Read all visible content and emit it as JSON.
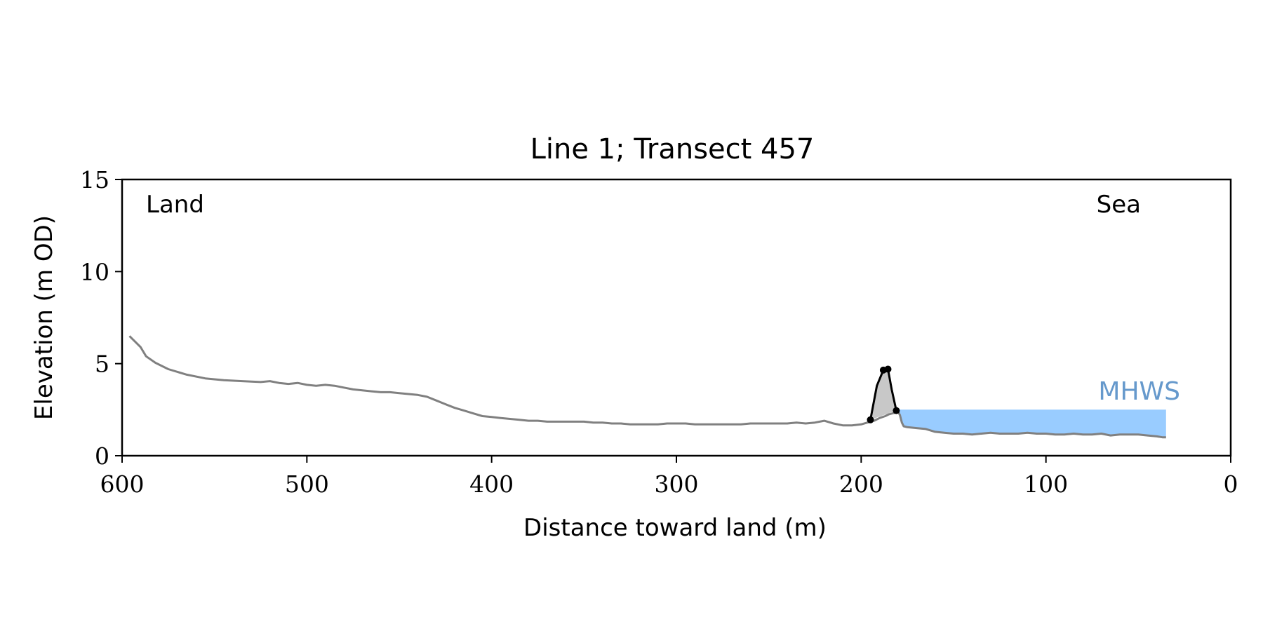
{
  "chart_data": {
    "type": "line",
    "title": "Line 1; Transect 457",
    "xlabel": "Distance toward land (m)",
    "ylabel": "Elevation (m OD)",
    "xlim": [
      600,
      0
    ],
    "ylim": [
      0,
      15
    ],
    "x_ticks": [
      600,
      500,
      400,
      300,
      200,
      100,
      0
    ],
    "y_ticks": [
      0,
      5,
      10,
      15
    ],
    "grid": false,
    "annotations": {
      "land": "Land",
      "sea": "Sea",
      "mhws": "MHWS"
    },
    "colors": {
      "profile": "#808080",
      "dune_fill": "#c8c8c8",
      "dune_line": "#000000",
      "water": "#99ccff",
      "mhws_label": "#6699cc"
    },
    "mhws": {
      "level": 2.5,
      "x_start": 180,
      "x_end": 35
    },
    "profile": {
      "x": [
        596,
        590,
        587,
        582,
        575,
        565,
        555,
        545,
        535,
        525,
        520,
        515,
        510,
        505,
        500,
        495,
        490,
        485,
        480,
        475,
        470,
        465,
        460,
        455,
        450,
        445,
        440,
        435,
        430,
        425,
        420,
        415,
        410,
        405,
        400,
        395,
        390,
        385,
        380,
        375,
        370,
        365,
        360,
        355,
        350,
        345,
        340,
        335,
        330,
        325,
        320,
        315,
        310,
        305,
        300,
        295,
        290,
        285,
        280,
        275,
        270,
        265,
        260,
        255,
        250,
        245,
        240,
        235,
        230,
        225,
        220,
        215,
        210,
        205,
        200,
        195,
        193,
        190,
        187,
        185,
        183,
        181,
        180,
        179,
        178,
        177,
        175,
        170,
        165,
        160,
        155,
        150,
        145,
        140,
        135,
        130,
        125,
        120,
        115,
        110,
        105,
        100,
        95,
        90,
        85,
        80,
        75,
        70,
        65,
        60,
        55,
        50,
        45,
        40,
        37,
        35
      ],
      "y": [
        6.5,
        5.9,
        5.4,
        5.05,
        4.7,
        4.4,
        4.2,
        4.1,
        4.05,
        4.0,
        4.05,
        3.95,
        3.9,
        3.95,
        3.85,
        3.8,
        3.85,
        3.8,
        3.7,
        3.6,
        3.55,
        3.5,
        3.45,
        3.45,
        3.4,
        3.35,
        3.3,
        3.2,
        3.0,
        2.8,
        2.6,
        2.45,
        2.3,
        2.15,
        2.1,
        2.05,
        2.0,
        1.95,
        1.9,
        1.9,
        1.85,
        1.85,
        1.85,
        1.85,
        1.85,
        1.8,
        1.8,
        1.75,
        1.75,
        1.7,
        1.7,
        1.7,
        1.7,
        1.75,
        1.75,
        1.75,
        1.7,
        1.7,
        1.7,
        1.7,
        1.7,
        1.7,
        1.75,
        1.75,
        1.75,
        1.75,
        1.75,
        1.8,
        1.75,
        1.8,
        1.9,
        1.75,
        1.65,
        1.65,
        1.7,
        1.85,
        1.9,
        2.05,
        2.15,
        2.25,
        2.3,
        2.35,
        2.4,
        2.2,
        1.8,
        1.6,
        1.55,
        1.5,
        1.45,
        1.3,
        1.25,
        1.2,
        1.2,
        1.15,
        1.2,
        1.25,
        1.2,
        1.2,
        1.2,
        1.25,
        1.2,
        1.2,
        1.15,
        1.15,
        1.2,
        1.15,
        1.15,
        1.2,
        1.1,
        1.15,
        1.15,
        1.15,
        1.1,
        1.05,
        1.0,
        1.0
      ]
    },
    "dune": {
      "x": [
        195,
        191.5,
        188,
        185.5,
        183.5,
        181
      ],
      "y": [
        1.95,
        3.8,
        4.65,
        4.7,
        3.6,
        2.45
      ],
      "points": [
        [
          195,
          1.95
        ],
        [
          188,
          4.65
        ],
        [
          185.5,
          4.7
        ],
        [
          181,
          2.45
        ]
      ]
    }
  }
}
